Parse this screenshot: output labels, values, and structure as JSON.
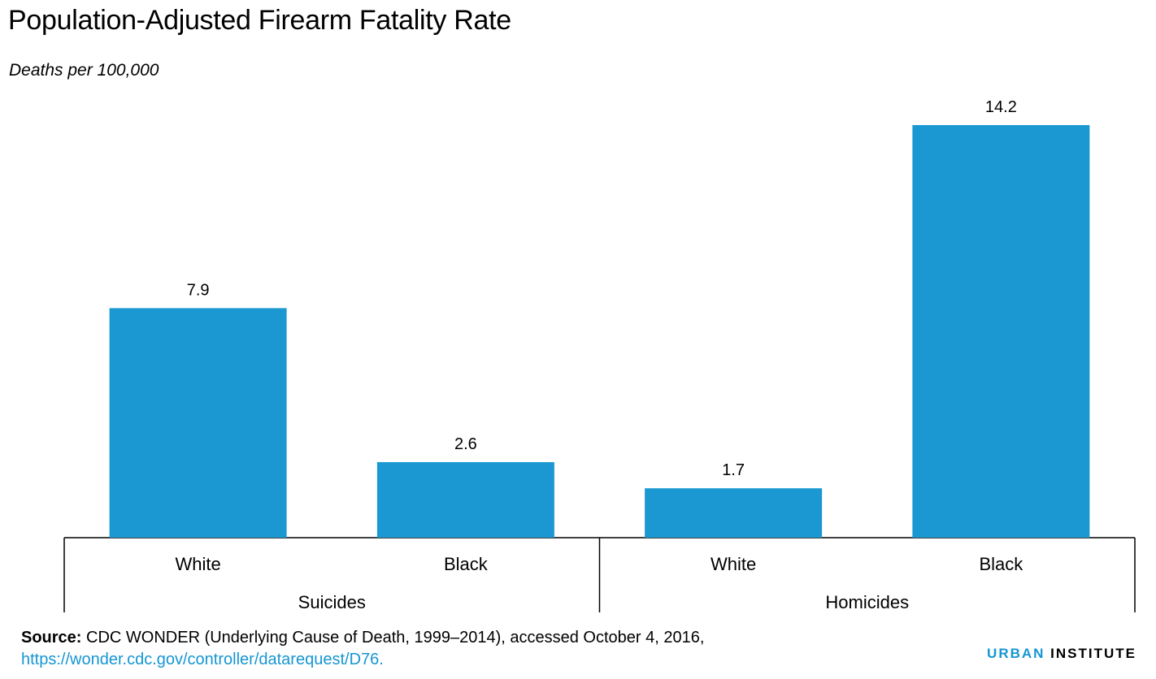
{
  "chart_data": {
    "type": "bar",
    "title": "Population-Adjusted Firearm Fatality Rate",
    "subtitle": "Deaths per 100,000",
    "groups": [
      {
        "name": "Suicides",
        "categories": [
          "White",
          "Black"
        ],
        "values": [
          7.9,
          2.6
        ],
        "value_labels": [
          "7.9",
          "2.6"
        ]
      },
      {
        "name": "Homicides",
        "categories": [
          "White",
          "Black"
        ],
        "values": [
          1.7,
          14.2
        ],
        "value_labels": [
          "1.7",
          "14.2"
        ]
      }
    ],
    "ylim": [
      0,
      14.2
    ],
    "grid": false,
    "bar_color": "#1b98d1"
  },
  "source": {
    "label": "Source:",
    "text": " CDC WONDER (Underlying Cause of Death, 1999–2014), accessed October 4, 2016,",
    "url": "https://wonder.cdc.gov/controller/datarequest/D76."
  },
  "brand": {
    "part1": "URBAN",
    "part2": " INSTITUTE"
  }
}
